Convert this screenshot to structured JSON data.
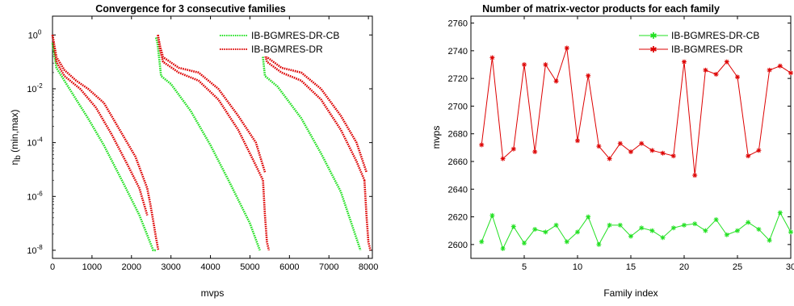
{
  "colors": {
    "green": "#22e022",
    "red": "#dd0000",
    "axis": "#000000"
  },
  "chart_data": [
    {
      "type": "line",
      "title": "Convergence for 3 consecutive families",
      "xlabel": "mvps",
      "ylabel_main": "η",
      "ylabel_sub": "b",
      "ylabel_rest": " (min,max)",
      "xlim": [
        0,
        8100
      ],
      "ylim": [
        5e-09,
        5
      ],
      "yscale": "log",
      "xticks": [
        0,
        1000,
        2000,
        3000,
        4000,
        5000,
        6000,
        7000,
        8000
      ],
      "xtick_labels": [
        "0",
        "1000",
        "2000",
        "3000",
        "4000",
        "5000",
        "6000",
        "7000",
        "8000"
      ],
      "yticks": [
        1e-08,
        1e-06,
        0.0001,
        0.01,
        1
      ],
      "ytick_labels": [
        {
          "base": "10",
          "exp": "-8"
        },
        {
          "base": "10",
          "exp": "-6"
        },
        {
          "base": "10",
          "exp": "-4"
        },
        {
          "base": "10",
          "exp": "-2"
        },
        {
          "base": "10",
          "exp": "0"
        }
      ],
      "legend": "top-right",
      "series": [
        {
          "name": "IB-BGMRES-DR-CB",
          "color": "#22e022",
          "segments": [
            {
              "x": [
                0,
                100,
                300,
                600,
                900,
                1300,
                1800,
                2200,
                2550,
                2620
              ],
              "y": [
                0.5,
                0.06,
                0.02,
                0.004,
                0.0008,
                8e-05,
                3e-06,
                2e-07,
                1e-08,
                1e-08
              ]
            },
            {
              "x": [
                2620,
                2660,
                2750,
                3000,
                3500,
                4000,
                4500,
                5000,
                5250
              ],
              "y": [
                0.8,
                0.5,
                0.03,
                0.015,
                0.0015,
                8e-05,
                3e-06,
                1e-07,
                1e-08
              ]
            },
            {
              "x": [
                5250,
                5290,
                5380,
                5700,
                6300,
                6800,
                7300,
                7800
              ],
              "y": [
                0.8,
                0.5,
                0.03,
                0.012,
                0.0008,
                4e-05,
                1.5e-06,
                1e-08
              ]
            }
          ]
        },
        {
          "name": "IB-BGMRES-DR",
          "color": "#dd0000",
          "segments": [
            {
              "x": [
                0,
                100,
                300,
                600,
                900,
                1300,
                1700,
                2100,
                2400
              ],
              "y": [
                1,
                0.15,
                0.05,
                0.02,
                0.01,
                0.003,
                0.0003,
                3e-05,
                2e-06
              ]
            },
            {
              "x": [
                0,
                100,
                300,
                700,
                1100,
                1500,
                1900,
                2200,
                2400
              ],
              "y": [
                1,
                0.1,
                0.03,
                0.01,
                0.002,
                0.0002,
                1.5e-05,
                2e-06,
                2e-07
              ]
            },
            {
              "x": [
                2400,
                2480,
                2560,
                2620,
                2680
              ],
              "y": [
                2e-06,
                5e-07,
                1e-07,
                3e-08,
                1e-08
              ]
            },
            {
              "x": [
                2670,
                2720,
                2800,
                3200,
                3700,
                4200,
                4700,
                5150,
                5380
              ],
              "y": [
                1,
                0.4,
                0.15,
                0.06,
                0.04,
                0.01,
                0.001,
                0.0001,
                8e-06
              ]
            },
            {
              "x": [
                2670,
                2720,
                2800,
                3200,
                3700,
                4200,
                4700,
                5100,
                5330
              ],
              "y": [
                1,
                0.3,
                0.1,
                0.04,
                0.02,
                0.004,
                0.0003,
                2e-05,
                4e-06
              ]
            },
            {
              "x": [
                5330,
                5380,
                5430,
                5480
              ],
              "y": [
                4e-06,
                2e-07,
                2e-08,
                1e-08
              ]
            },
            {
              "x": [
                5290,
                5340,
                5430,
                5800,
                6300,
                6800,
                7300,
                7700,
                7950
              ],
              "y": [
                1,
                0.4,
                0.15,
                0.06,
                0.04,
                0.01,
                0.001,
                0.0001,
                8e-06
              ]
            },
            {
              "x": [
                5290,
                5340,
                5430,
                5800,
                6300,
                6800,
                7300,
                7700,
                7900
              ],
              "y": [
                1,
                0.3,
                0.1,
                0.04,
                0.02,
                0.004,
                0.0003,
                2e-05,
                4e-06
              ]
            },
            {
              "x": [
                7900,
                7950,
                8000,
                8050
              ],
              "y": [
                4e-06,
                2e-07,
                2e-08,
                1e-08
              ]
            }
          ]
        }
      ]
    },
    {
      "type": "line",
      "title": "Number of matrix-vector products for each family",
      "xlabel": "Family index",
      "ylabel": "mvps",
      "xlim": [
        0,
        30
      ],
      "ylim": [
        2590,
        2765
      ],
      "xticks": [
        5,
        10,
        15,
        20,
        25,
        30
      ],
      "xtick_labels": [
        "5",
        "10",
        "15",
        "20",
        "25",
        "30"
      ],
      "yticks": [
        2600,
        2620,
        2640,
        2660,
        2680,
        2700,
        2720,
        2740,
        2760
      ],
      "ytick_labels": [
        "2600",
        "2620",
        "2640",
        "2660",
        "2680",
        "2700",
        "2720",
        "2740",
        "2760"
      ],
      "legend": "top-right",
      "x": [
        1,
        2,
        3,
        4,
        5,
        6,
        7,
        8,
        9,
        10,
        11,
        12,
        13,
        14,
        15,
        16,
        17,
        18,
        19,
        20,
        21,
        22,
        23,
        24,
        25,
        26,
        27,
        28,
        29,
        30
      ],
      "series": [
        {
          "name": "IB-BGMRES-DR-CB",
          "color": "#22e022",
          "values": [
            2602,
            2621,
            2597,
            2613,
            2601,
            2611,
            2609,
            2614,
            2602,
            2609,
            2620,
            2600,
            2614,
            2614,
            2606,
            2612,
            2610,
            2605,
            2612,
            2614,
            2615,
            2610,
            2618,
            2607,
            2610,
            2616,
            2611,
            2603,
            2623,
            2609
          ]
        },
        {
          "name": "IB-BGMRES-DR",
          "color": "#dd0000",
          "values": [
            2672,
            2735,
            2662,
            2669,
            2730,
            2667,
            2730,
            2718,
            2742,
            2675,
            2722,
            2671,
            2662,
            2673,
            2667,
            2673,
            2668,
            2666,
            2664,
            2732,
            2650,
            2726,
            2723,
            2732,
            2721,
            2664,
            2668,
            2726,
            2729,
            2724
          ]
        }
      ]
    }
  ]
}
